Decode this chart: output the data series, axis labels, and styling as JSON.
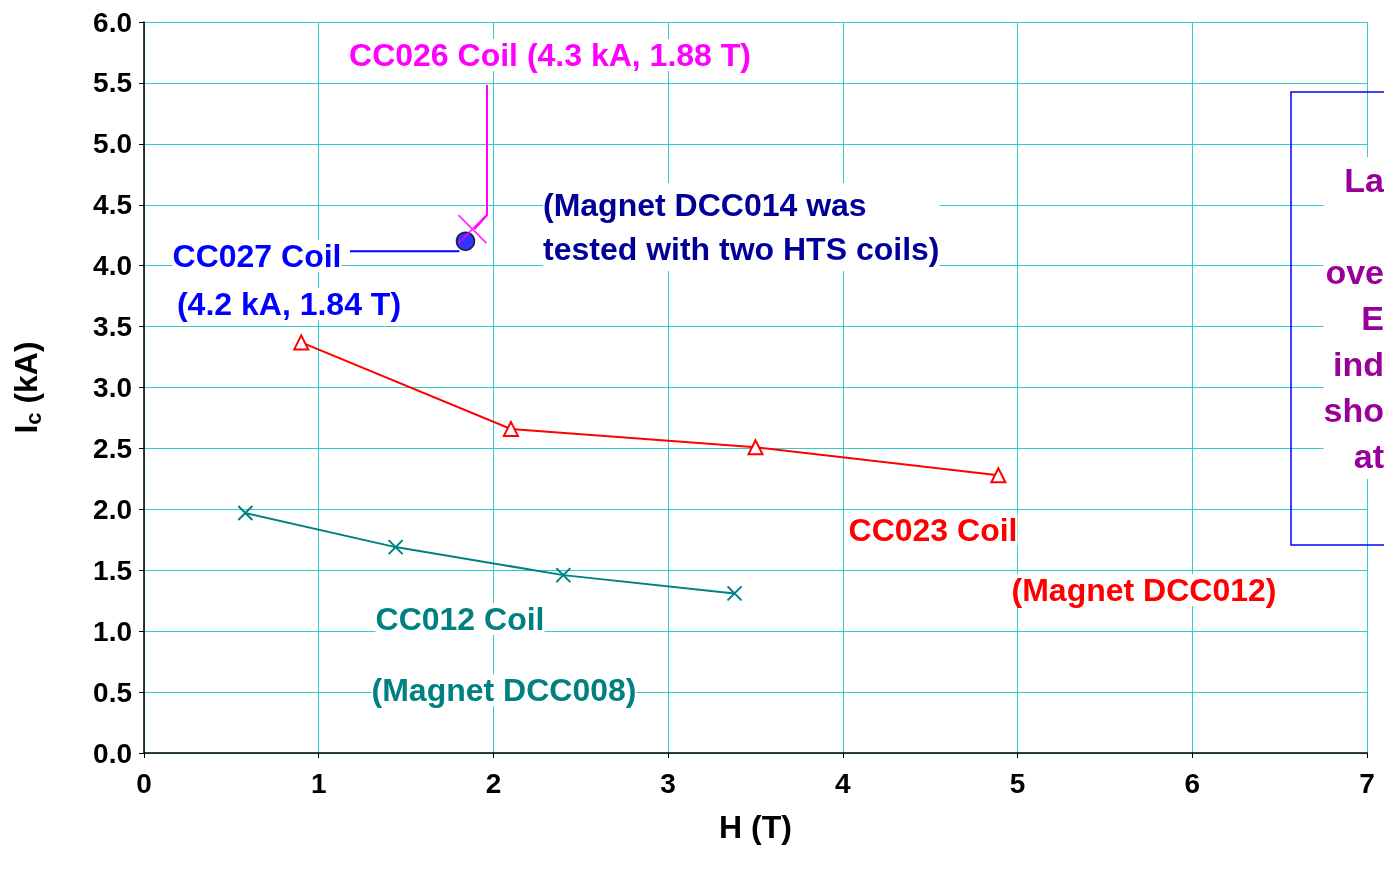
{
  "chart_data": {
    "type": "line",
    "xlabel": "H (T)",
    "ylabel": "I$_{c}$ (kA)",
    "xlim": [
      0,
      7
    ],
    "xticks": [
      0,
      1,
      2,
      3,
      4,
      5,
      6,
      7
    ],
    "ylim": [
      0,
      6
    ],
    "yticks": [
      {
        "value": 0,
        "label": "0.0"
      },
      {
        "value": 0.5,
        "label": "0.5"
      },
      {
        "value": 1,
        "label": "1.0"
      },
      {
        "value": 1.5,
        "label": "1.5"
      },
      {
        "value": 2,
        "label": "2.0"
      },
      {
        "value": 2.5,
        "label": "2.5"
      },
      {
        "value": 3,
        "label": "3.0"
      },
      {
        "value": 3.5,
        "label": "3.5"
      },
      {
        "value": 4,
        "label": "4.0"
      },
      {
        "value": 4.5,
        "label": "4.5"
      },
      {
        "value": 5,
        "label": "5.0"
      },
      {
        "value": 5.5,
        "label": "5.5"
      },
      {
        "value": 6,
        "label": "6.0"
      }
    ],
    "grid": true,
    "legend": false,
    "series": [
      {
        "name": "CC023 Coil\n(Magnet DCC012)",
        "color": "#ff0000",
        "marker": "triangle",
        "x": [
          0.9,
          2.1,
          3.5,
          4.89
        ],
        "values": [
          3.37,
          2.66,
          2.51,
          2.28
        ]
      },
      {
        "name": "CC012 Coil\n(Magnet DCC008)",
        "color": "#008080",
        "marker": "cross",
        "x": [
          0.58,
          1.44,
          2.4,
          3.38
        ],
        "values": [
          1.97,
          1.69,
          1.46,
          1.31
        ]
      },
      {
        "name": "CC027 Coil\n(4.2 kA, 1.84 T)",
        "type": "scatter",
        "color": "#0000ff",
        "marker": "circle",
        "x": [
          1.84
        ],
        "values": [
          4.2
        ]
      },
      {
        "name": "CC026 Coil (4.3 kA, 1.88 T)",
        "type": "scatter",
        "color": "#ff00ff",
        "marker": "cross",
        "x": [
          1.88
        ],
        "values": [
          4.3
        ]
      }
    ],
    "annotations": [
      "(Magnet DCC014 was\ntested with two HTS coils)",
      "La\n\nove\nE\nind\nsho\nat"
    ]
  }
}
